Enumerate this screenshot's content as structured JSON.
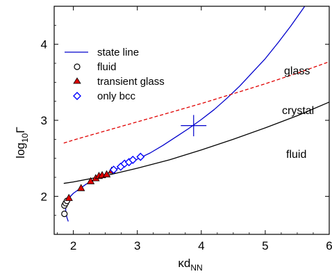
{
  "chart_data": {
    "type": "scatter",
    "title": "",
    "xlabel": {
      "base": "κd",
      "sub": "NN"
    },
    "ylabel": {
      "pre": "log",
      "sub": "10",
      "post": "Γ"
    },
    "xlim": [
      1.7,
      6.0
    ],
    "ylim": [
      1.5,
      4.5
    ],
    "xticks": [
      2,
      3,
      4,
      5,
      6
    ],
    "yticks": [
      2,
      3,
      4
    ],
    "x_tick_labels": [
      "2",
      "3",
      "4",
      "5",
      "6"
    ],
    "y_tick_labels": [
      "2",
      "3",
      "4"
    ],
    "legend_position": "top-left",
    "region_labels": [
      "glass",
      "crystal",
      "fluid"
    ],
    "colors": {
      "state_line": "#0000cc",
      "glass_line": "#e00000",
      "crystal_line": "#000000",
      "transient_glass": "#dd0000",
      "only_bcc": "#0000ff"
    },
    "series": [
      {
        "name": "state line",
        "kind": "line",
        "color": "#0000cc",
        "x": [
          1.92,
          1.9,
          1.88,
          1.88,
          1.9,
          2.0,
          2.2,
          2.4,
          2.6,
          2.8,
          3.0,
          3.2,
          3.4,
          3.6,
          3.8,
          4.0,
          4.2,
          4.4,
          4.6,
          4.8,
          5.0,
          5.2,
          5.4,
          5.6,
          5.75
        ],
        "y": [
          1.67,
          1.72,
          1.8,
          1.88,
          1.95,
          2.04,
          2.16,
          2.25,
          2.33,
          2.41,
          2.49,
          2.57,
          2.67,
          2.78,
          2.89,
          3.01,
          3.14,
          3.29,
          3.45,
          3.63,
          3.81,
          4.02,
          4.24,
          4.48,
          4.67
        ]
      },
      {
        "name": "",
        "kind": "line",
        "color": "#e00000",
        "dashed": true,
        "x": [
          1.85,
          2.0,
          2.5,
          3.0,
          3.5,
          4.0,
          4.5,
          5.0,
          5.5,
          6.0
        ],
        "y": [
          2.7,
          2.74,
          2.86,
          2.98,
          3.1,
          3.22,
          3.35,
          3.48,
          3.62,
          3.77
        ]
      },
      {
        "name": "",
        "kind": "line",
        "color": "#000000",
        "x": [
          1.85,
          2.0,
          2.5,
          3.0,
          3.5,
          4.0,
          4.5,
          5.0,
          5.5,
          6.0
        ],
        "y": [
          2.17,
          2.19,
          2.27,
          2.37,
          2.48,
          2.61,
          2.75,
          2.9,
          3.06,
          3.24
        ]
      },
      {
        "name": "fluid",
        "kind": "marker",
        "marker": "circle",
        "x": [
          1.86,
          1.86,
          1.88,
          1.9
        ],
        "y": [
          1.77,
          1.88,
          1.91,
          1.94
        ]
      },
      {
        "name": "transient glass",
        "kind": "marker",
        "marker": "triangle",
        "x": [
          1.93,
          2.12,
          2.27,
          2.35,
          2.4,
          2.45,
          2.52,
          2.6
        ],
        "y": [
          1.98,
          2.11,
          2.2,
          2.24,
          2.27,
          2.28,
          2.29,
          2.34
        ]
      },
      {
        "name": "only bcc",
        "kind": "marker",
        "marker": "diamond",
        "x": [
          2.63,
          2.74,
          2.8,
          2.87,
          2.93,
          3.05
        ],
        "y": [
          2.35,
          2.39,
          2.43,
          2.45,
          2.48,
          2.52
        ]
      }
    ],
    "error_bar": {
      "x": 3.88,
      "y": 2.93,
      "xerr": 0.2,
      "yerr": 0.14,
      "color": "#0000cc"
    }
  }
}
